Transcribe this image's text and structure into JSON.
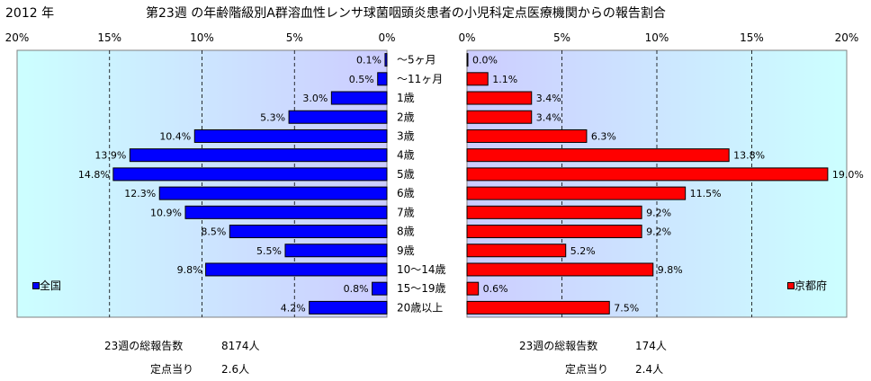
{
  "header": {
    "year": "2012 年",
    "title": "第23週 の年齢階級別A群溶血性レンサ球菌咽頭炎患者の小児科定点医療機関からの報告割合"
  },
  "chart_data": {
    "type": "bar",
    "orientation": "horizontal",
    "categories": [
      "～5ヶ月",
      "～11ヶ月",
      "1歳",
      "2歳",
      "3歳",
      "4歳",
      "5歳",
      "6歳",
      "7歳",
      "8歳",
      "9歳",
      "10～14歳",
      "15～19歳",
      "20歳以上"
    ],
    "series": [
      {
        "name": "全国",
        "color": "#0000ff",
        "values": [
          0.1,
          0.5,
          3.0,
          5.3,
          10.4,
          13.9,
          14.8,
          12.3,
          10.9,
          8.5,
          5.5,
          9.8,
          0.8,
          4.2
        ],
        "labels": [
          "0.1%",
          "0.5%",
          "3.0%",
          "5.3%",
          "10.4%",
          "13.9%",
          "14.8%",
          "12.3%",
          "10.9%",
          "8.5%",
          "5.5%",
          "9.8%",
          "0.8%",
          "4.2%"
        ],
        "axis_ticks": [
          "20%",
          "15%",
          "10%",
          "5%",
          "0%"
        ],
        "xlim": [
          0,
          20
        ],
        "direction": "right-to-left",
        "legend_position": "bottom-left",
        "plot_background": "gradient light-cyan to lavender"
      },
      {
        "name": "京都府",
        "color": "#ff0000",
        "values": [
          0.0,
          1.1,
          3.4,
          3.4,
          6.3,
          13.8,
          19.0,
          11.5,
          9.2,
          9.2,
          5.2,
          9.8,
          0.6,
          7.5
        ],
        "labels": [
          "0.0%",
          "1.1%",
          "3.4%",
          "3.4%",
          "6.3%",
          "13.8%",
          "19.0%",
          "11.5%",
          "9.2%",
          "9.2%",
          "5.2%",
          "9.8%",
          "0.6%",
          "7.5%"
        ],
        "axis_ticks": [
          "0%",
          "5%",
          "10%",
          "15%",
          "20%"
        ],
        "xlim": [
          0,
          20
        ],
        "direction": "left-to-right",
        "legend_position": "bottom-right",
        "plot_background": "gradient lavender to light-cyan"
      }
    ],
    "grid": true
  },
  "footer": {
    "national": {
      "total_label": "23週の総報告数",
      "total_value": "8174人",
      "per_label": "定点当り",
      "per_value": "2.6人"
    },
    "kyoto": {
      "total_label": "23週の総報告数",
      "total_value": "174人",
      "per_label": "定点当り",
      "per_value": "2.4人"
    }
  }
}
